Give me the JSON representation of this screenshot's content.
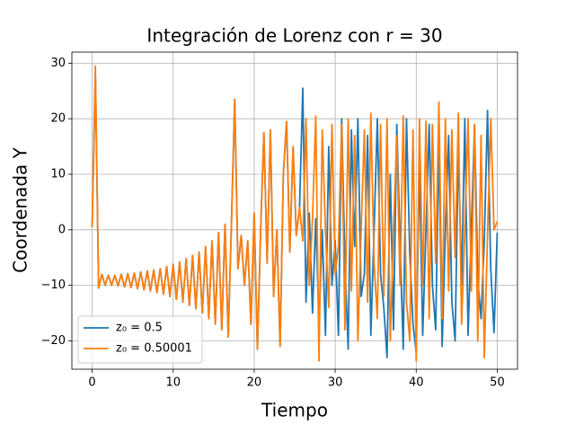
{
  "chart_data": {
    "type": "line",
    "title": "Integración de Lorenz con r = 30",
    "x_label": "Tiempo",
    "y_label": "Coordenada Y",
    "x": [
      0,
      0.4,
      0.8,
      1.2,
      1.6,
      2.0,
      2.4,
      2.8,
      3.2,
      3.6,
      4.0,
      4.4,
      4.8,
      5.2,
      5.6,
      6.0,
      6.4,
      6.8,
      7.2,
      7.6,
      8.0,
      8.4,
      8.8,
      9.2,
      9.6,
      10.0,
      10.4,
      10.8,
      11.2,
      11.6,
      12.0,
      12.4,
      12.8,
      13.2,
      13.6,
      14.0,
      14.4,
      14.8,
      15.2,
      15.6,
      16.0,
      16.4,
      16.8,
      17.2,
      17.6,
      18.0,
      18.4,
      18.8,
      19.2,
      19.6,
      20.0,
      20.4,
      20.8,
      21.2,
      21.6,
      22.0,
      22.4,
      22.8,
      23.2,
      23.6,
      24.0,
      24.4,
      24.8,
      25.2,
      25.6,
      26.0,
      26.4,
      26.8,
      27.2,
      27.6,
      28.0,
      28.4,
      28.8,
      29.2,
      29.6,
      30.0,
      30.4,
      30.8,
      31.2,
      31.6,
      32.0,
      32.4,
      32.8,
      33.2,
      33.6,
      34.0,
      34.4,
      34.8,
      35.2,
      35.6,
      36.0,
      36.4,
      36.8,
      37.2,
      37.6,
      38.0,
      38.4,
      38.8,
      39.2,
      39.6,
      40.0,
      40.4,
      40.8,
      41.2,
      41.6,
      42.0,
      42.4,
      42.8,
      43.2,
      43.6,
      44.0,
      44.4,
      44.8,
      45.2,
      45.6,
      46.0,
      46.4,
      46.8,
      47.2,
      47.6,
      48.0,
      48.4,
      48.8,
      49.2,
      49.6,
      50.0
    ],
    "series": [
      {
        "name": "z₀ = 0.5",
        "color": "#1f77b4",
        "values": [
          0.5,
          28,
          -10.5,
          -8,
          -10,
          -8.2,
          -10,
          -8.2,
          -10.1,
          -8,
          -10.3,
          -7.9,
          -10.4,
          -7.8,
          -10.6,
          -7.6,
          -10.8,
          -7.4,
          -11,
          -7.2,
          -11.3,
          -7,
          -11.6,
          -6.6,
          -12,
          -6.2,
          -12.5,
          -5.8,
          -13,
          -5.2,
          -13.6,
          -4.6,
          -14.2,
          -4,
          -15,
          -3,
          -16,
          -2,
          -17,
          -0.5,
          -18,
          1,
          -19.3,
          1.5,
          23.5,
          -7,
          -1,
          -10,
          -2,
          -17,
          3,
          -21.5,
          0,
          17.5,
          -6,
          18,
          -12,
          0,
          -21,
          10,
          19.5,
          -4,
          15,
          -1,
          4,
          25.5,
          -13,
          3,
          -15,
          2,
          -17,
          0,
          -19,
          15,
          -10,
          -2,
          -19,
          20,
          -6,
          -21.5,
          18,
          -3,
          20,
          -12,
          -8,
          17,
          -19,
          0,
          20,
          -8,
          -14,
          -23,
          10,
          -18,
          19,
          -2,
          -21.5,
          20,
          -4,
          -17,
          -22,
          12,
          -19,
          0,
          19,
          -10,
          -18,
          16,
          -21,
          0,
          17,
          -13,
          -20,
          15,
          -10,
          20,
          -19,
          0,
          19,
          -9,
          -16,
          -2,
          21.5,
          -7,
          -18.5,
          -0.5
        ]
      },
      {
        "name": "z₀ = 0.50001",
        "color": "#ff7f0e",
        "values": [
          0.5,
          29.5,
          -10.5,
          -8,
          -10,
          -8.2,
          -10,
          -8.2,
          -10.1,
          -8,
          -10.3,
          -7.9,
          -10.4,
          -7.8,
          -10.6,
          -7.6,
          -10.8,
          -7.4,
          -11,
          -7.2,
          -11.3,
          -7,
          -11.6,
          -6.6,
          -12,
          -6.2,
          -12.5,
          -5.8,
          -13,
          -5.2,
          -13.6,
          -4.6,
          -14.2,
          -4,
          -15,
          -3,
          -16,
          -2,
          -17,
          -0.5,
          -18,
          1,
          -19.3,
          1.5,
          23.5,
          -7,
          -1,
          -10,
          -2,
          -17,
          3,
          -21.5,
          0,
          17.5,
          -6,
          18,
          -12,
          0,
          -21,
          10,
          19.5,
          -4,
          15,
          -1,
          4,
          -2,
          20,
          -10,
          2,
          20.5,
          -23.6,
          18,
          0,
          -14,
          19,
          -8,
          -3,
          19,
          -18,
          20,
          -11,
          17,
          -20,
          0,
          18,
          -13,
          21,
          -6,
          -16,
          19,
          -12,
          20,
          -20,
          0,
          17,
          -10,
          20.5,
          -13,
          -20,
          18,
          -23.6,
          20,
          -10,
          19.5,
          -16,
          19,
          -6,
          23,
          -16,
          20,
          -11,
          18,
          -5,
          21,
          -17,
          0,
          20,
          -11,
          19,
          -20,
          17,
          -23,
          -1,
          20,
          0,
          1.5
        ]
      }
    ],
    "xlim": [
      -2.5,
      52.5
    ],
    "ylim": [
      -25.1,
      32
    ],
    "xticks": [
      0,
      10,
      20,
      30,
      40,
      50
    ],
    "yticks": [
      {
        "value": -20,
        "label": "−20"
      },
      {
        "value": -10,
        "label": "−10"
      },
      0,
      10,
      20,
      30
    ],
    "grid": true,
    "legend": "lower left"
  }
}
